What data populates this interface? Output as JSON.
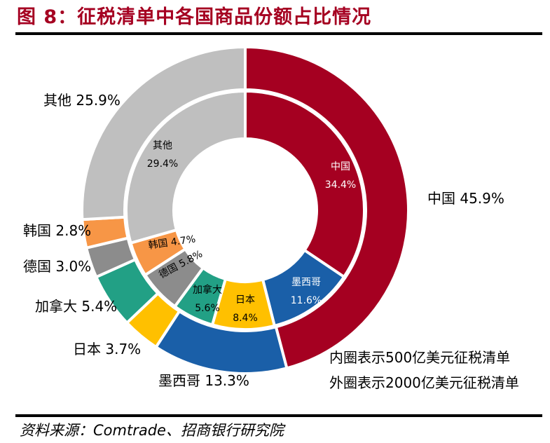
{
  "title": "图 8：征税清单中各国商品份额占比情况",
  "source": "资料来源：Comtrade、招商银行研究院",
  "chart_data": {
    "type": "donut",
    "title": "图 8：征税清单中各国商品份额占比情况",
    "rings": [
      {
        "name": "外圈",
        "description": "外圈表示2000亿美元征税清单",
        "slices": [
          {
            "label": "中国",
            "value": 45.9,
            "text": "中国 45.9%",
            "color": "#a50021"
          },
          {
            "label": "墨西哥",
            "value": 13.3,
            "text": "墨西哥 13.3%",
            "color": "#1a5fa8"
          },
          {
            "label": "日本",
            "value": 3.7,
            "text": "日本 3.7%",
            "color": "#ffc000"
          },
          {
            "label": "加拿大",
            "value": 5.4,
            "text": "加拿大 5.4%",
            "color": "#22a085"
          },
          {
            "label": "德国",
            "value": 3.0,
            "text": "德国 3.0%",
            "color": "#8c8c8c"
          },
          {
            "label": "韩国",
            "value": 2.8,
            "text": "韩国 2.8%",
            "color": "#f79646"
          },
          {
            "label": "其他",
            "value": 25.9,
            "text": "其他 25.9%",
            "color": "#bfbfbf"
          }
        ]
      },
      {
        "name": "内圈",
        "description": "内圈表示500亿美元征税清单",
        "slices": [
          {
            "label": "中国",
            "value": 34.4,
            "pct": "34.4%",
            "color": "#a50021"
          },
          {
            "label": "墨西哥",
            "value": 11.6,
            "pct": "11.6%",
            "color": "#1a5fa8"
          },
          {
            "label": "日本",
            "value": 8.4,
            "pct": "8.4%",
            "color": "#ffc000"
          },
          {
            "label": "加拿大",
            "value": 5.6,
            "pct": "5.6%",
            "color": "#22a085"
          },
          {
            "label": "德国",
            "value": 5.8,
            "pct": "5.8%",
            "color": "#8c8c8c"
          },
          {
            "label": "韩国",
            "value": 4.7,
            "pct": "4.7%",
            "color": "#f79646"
          },
          {
            "label": "其他",
            "value": 29.4,
            "pct": "29.4%",
            "color": "#bfbfbf"
          }
        ]
      }
    ],
    "legend_notes": [
      "内圈表示500亿美元征税清单",
      "外圈表示2000亿美元征税清单"
    ]
  }
}
